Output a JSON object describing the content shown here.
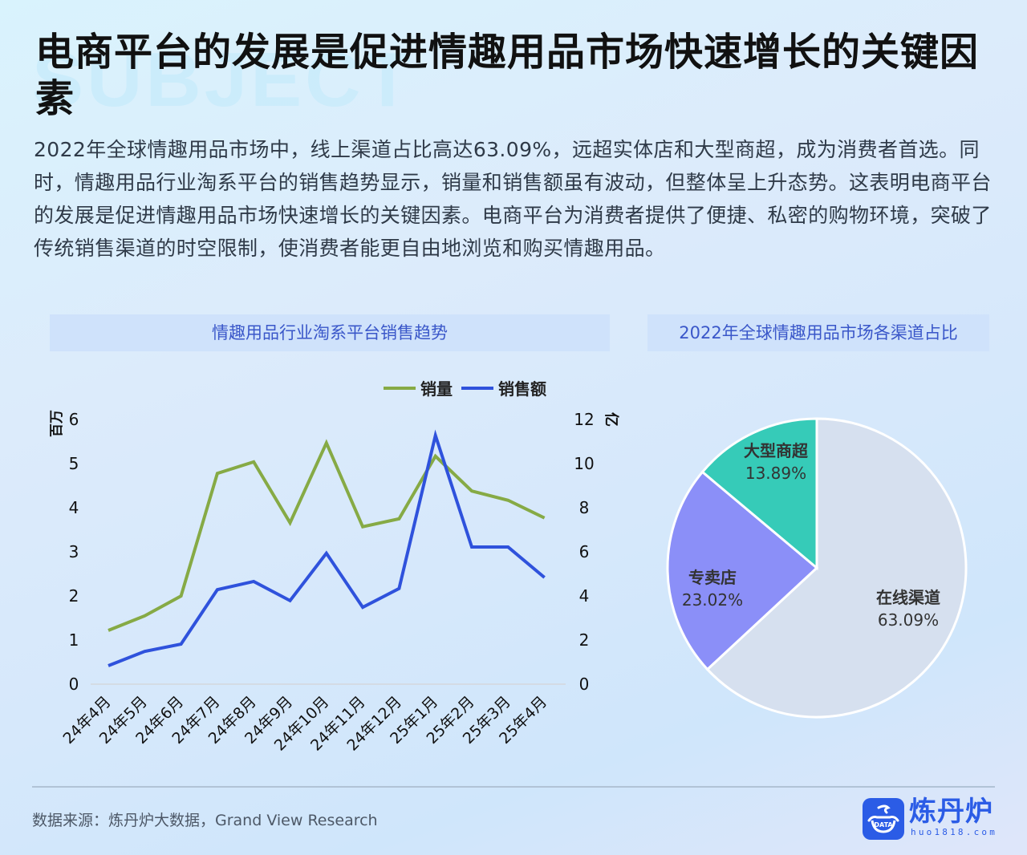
{
  "watermark": "SUBJECT",
  "title": "电商平台的发展是促进情趣用品市场快速增长的关键因素",
  "intro": "2022年全球情趣用品市场中，线上渠道占比高达63.09%，远超实体店和大型商超，成为消费者首选。同时，情趣用品行业淘系平台的销售趋势显示，销量和销售额虽有波动，但整体呈上升态势。这表明电商平台的发展是促进情趣用品市场快速增长的关键因素。电商平台为消费者提供了便捷、私密的购物环境，突破了传统销售渠道的时空限制，使消费者能更自由地浏览和购买情趣用品。",
  "panels": {
    "left_title": "情趣用品行业淘系平台销售趋势",
    "right_title": "2022年全球情趣用品市场各渠道占比"
  },
  "colors": {
    "sales_volume": "#86aa45",
    "sales_amount": "#2f52dc",
    "pie_online": "#d6e0ef",
    "pie_specialty": "#8b8ff8",
    "pie_supermarket": "#36cbb8",
    "accent": "#3a57c9",
    "brand": "#2b5ce6"
  },
  "chart_data": [
    {
      "type": "line",
      "title": "情趣用品行业淘系平台销售趋势",
      "categories": [
        "24年4月",
        "24年5月",
        "24年6月",
        "24年7月",
        "24年8月",
        "24年9月",
        "24年10月",
        "24年11月",
        "24年12月",
        "25年1月",
        "25年2月",
        "25年3月",
        "25年4月"
      ],
      "series": [
        {
          "name": "销量",
          "axis": "left",
          "unit": "百万",
          "values": [
            1.2,
            1.53,
            1.98,
            4.76,
            5.02,
            3.64,
            5.45,
            3.55,
            3.73,
            5.15,
            4.36,
            4.15,
            3.75
          ]
        },
        {
          "name": "销售额",
          "axis": "right",
          "unit": "亿",
          "values": [
            0.8,
            1.45,
            1.78,
            4.25,
            4.62,
            3.75,
            5.9,
            3.45,
            4.3,
            11.24,
            6.18,
            6.18,
            4.8
          ]
        }
      ],
      "ylabel": "百万",
      "ylabel_right": "亿",
      "ylim": [
        0,
        6
      ],
      "ylim_right": [
        0,
        12
      ],
      "yticks": [
        "0",
        "1",
        "2",
        "3",
        "4",
        "5",
        "6"
      ],
      "yticks_right": [
        "0",
        "2",
        "4",
        "6",
        "8",
        "10",
        "12"
      ],
      "legend": [
        "销量",
        "销售额"
      ],
      "legend_position": "top-right",
      "grid": false
    },
    {
      "type": "pie",
      "title": "2022年全球情趣用品市场各渠道占比",
      "labels": [
        "在线渠道",
        "专卖店",
        "大型商超"
      ],
      "values": [
        63.09,
        23.02,
        13.89
      ],
      "value_labels": [
        "63.09%",
        "23.02%",
        "13.89%"
      ]
    }
  ],
  "footer": {
    "source": "数据来源：炼丹炉大数据，Grand View Research",
    "logo_name": "炼丹炉",
    "logo_url": "huo1818.com",
    "logo_badge_text": "DATA"
  }
}
